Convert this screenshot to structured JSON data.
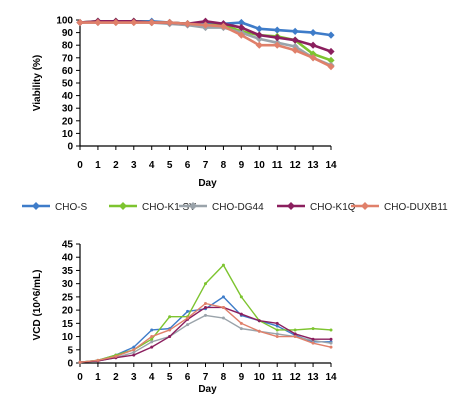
{
  "legend": {
    "placement": "between-panels",
    "entries": [
      {
        "label": "CHO-S",
        "color": "#3e7cc9"
      },
      {
        "label": "CHO-K1 SV",
        "color": "#7dc42f"
      },
      {
        "label": "CHO-DG44",
        "color": "#9aa3aa"
      },
      {
        "label": "CHO-K1Q",
        "color": "#8b1f5e"
      },
      {
        "label": "CHO-DUXB11",
        "color": "#e0806a"
      }
    ]
  },
  "chart_data": [
    {
      "type": "line",
      "ylabel": "Viability (%)",
      "xlabel": "Day",
      "xlim": [
        0,
        14
      ],
      "ylim": [
        0,
        100
      ],
      "xticks": [
        0,
        1,
        2,
        3,
        4,
        5,
        6,
        7,
        8,
        9,
        10,
        11,
        12,
        13,
        14
      ],
      "yticks": [
        0,
        10,
        20,
        30,
        40,
        50,
        60,
        70,
        80,
        90,
        100
      ],
      "grid": false,
      "markers": true,
      "x": [
        0,
        1,
        2,
        3,
        4,
        5,
        6,
        7,
        8,
        9,
        10,
        11,
        12,
        13,
        14
      ],
      "series": [
        {
          "name": "CHO-S",
          "color": "#3e7cc9",
          "values": [
            98,
            99,
            99,
            99,
            99,
            98,
            97,
            97,
            97,
            98,
            93,
            92,
            91,
            90,
            88
          ]
        },
        {
          "name": "CHO-K1 SV",
          "color": "#7dc42f",
          "values": [
            98,
            99,
            99,
            99,
            98,
            98,
            97,
            96,
            96,
            91,
            88,
            87,
            84,
            73,
            68
          ]
        },
        {
          "name": "CHO-DG44",
          "color": "#9aa3aa",
          "values": [
            98,
            98,
            98,
            98,
            98,
            97,
            96,
            94,
            94,
            90,
            85,
            82,
            79,
            70,
            64
          ]
        },
        {
          "name": "CHO-K1Q",
          "color": "#8b1f5e",
          "values": [
            98,
            99,
            99,
            99,
            98,
            98,
            97,
            99,
            97,
            94,
            88,
            86,
            84,
            80,
            75
          ]
        },
        {
          "name": "CHO-DUXB11",
          "color": "#e0806a",
          "values": [
            98,
            98,
            98,
            98,
            98,
            98,
            97,
            96,
            95,
            88,
            80,
            80,
            76,
            70,
            63
          ]
        }
      ]
    },
    {
      "type": "line",
      "ylabel": "VCD (10^6/mL)",
      "xlabel": "Day",
      "xlim": [
        0,
        14
      ],
      "ylim": [
        0,
        45
      ],
      "xticks": [
        0,
        1,
        2,
        3,
        4,
        5,
        6,
        7,
        8,
        9,
        10,
        11,
        12,
        13,
        14
      ],
      "yticks": [
        0,
        5,
        10,
        15,
        20,
        25,
        30,
        35,
        40,
        45
      ],
      "grid": false,
      "markers": true,
      "x": [
        0,
        1,
        2,
        3,
        4,
        5,
        6,
        7,
        8,
        9,
        10,
        11,
        12,
        13,
        14
      ],
      "series": [
        {
          "name": "CHO-S",
          "color": "#3e7cc9",
          "values": [
            0.3,
            1,
            3,
            6,
            12.5,
            13,
            19.5,
            20.5,
            25,
            18,
            16,
            14,
            10.5,
            8,
            8
          ]
        },
        {
          "name": "CHO-K1 SV",
          "color": "#7dc42f",
          "values": [
            0.3,
            1,
            3,
            5,
            9,
            17.5,
            17.5,
            30,
            37,
            25,
            16,
            12.5,
            12.5,
            13,
            12.5
          ]
        },
        {
          "name": "CHO-DG44",
          "color": "#9aa3aa",
          "values": [
            0.3,
            0.8,
            2,
            4,
            8,
            10,
            14.5,
            18,
            17,
            13,
            12,
            11,
            10,
            8.5,
            7.5
          ]
        },
        {
          "name": "CHO-K1Q",
          "color": "#8b1f5e",
          "values": [
            0.3,
            0.8,
            2,
            3,
            6,
            10,
            16.5,
            21,
            21,
            18.5,
            16,
            15,
            11,
            9,
            9
          ]
        },
        {
          "name": "CHO-DUXB11",
          "color": "#e0806a",
          "values": [
            0.3,
            1,
            2.5,
            5,
            10,
            12.5,
            17,
            22.5,
            21,
            15,
            12,
            10,
            10,
            7.5,
            6
          ]
        }
      ]
    }
  ]
}
